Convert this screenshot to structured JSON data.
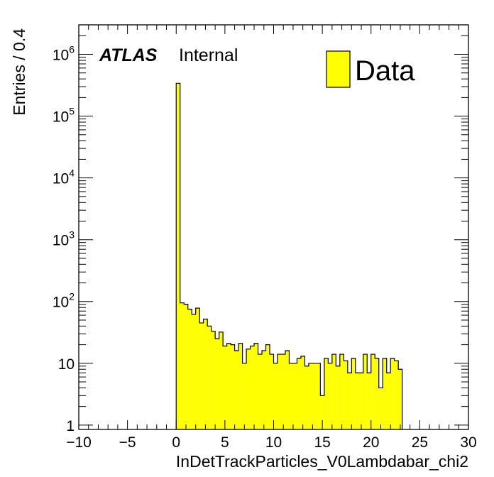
{
  "chart_data": {
    "type": "bar",
    "xlabel": "InDetTrackParticles_V0Lambdabar_chi2",
    "ylabel": "Entries / 0.4",
    "atlas_label": "ATLAS",
    "atlas_status": "Internal",
    "legend": {
      "entries": [
        "Data"
      ],
      "placement": "top-right",
      "color": "#ffff00"
    },
    "log_y": true,
    "xlim": [
      -10,
      30
    ],
    "ylim": [
      0.85,
      3000000
    ],
    "bin_width": 0.4,
    "x_ticks": [
      -10,
      -5,
      0,
      5,
      10,
      15,
      20,
      25,
      30
    ],
    "x_tick_labels": [
      "−10",
      "−5",
      "0",
      "5",
      "10",
      "15",
      "20",
      "25",
      "30"
    ],
    "y_ticks": [
      {
        "value": 1,
        "base": "1",
        "exp": ""
      },
      {
        "value": 10,
        "base": "10",
        "exp": ""
      },
      {
        "value": 100,
        "base": "10",
        "exp": "2"
      },
      {
        "value": 1000,
        "base": "10",
        "exp": "3"
      },
      {
        "value": 10000,
        "base": "10",
        "exp": "4"
      },
      {
        "value": 100000,
        "base": "10",
        "exp": "5"
      },
      {
        "value": 1000000,
        "base": "10",
        "exp": "6"
      }
    ],
    "bin_edges_start": 0,
    "values": [
      340000,
      95,
      90,
      75,
      62,
      78,
      45,
      52,
      40,
      33,
      25,
      32,
      19,
      21,
      20,
      16,
      21,
      10,
      17,
      19,
      21,
      14,
      16,
      20,
      14,
      10,
      14,
      14,
      16,
      10,
      10,
      12,
      13,
      9,
      10,
      10,
      10,
      3,
      12,
      10,
      14,
      9,
      14,
      11,
      7,
      12,
      7,
      7,
      14,
      7,
      14,
      12,
      4,
      12,
      7,
      12,
      11,
      8
    ],
    "fill_color": "#ffff00",
    "line_color": "#000000"
  }
}
